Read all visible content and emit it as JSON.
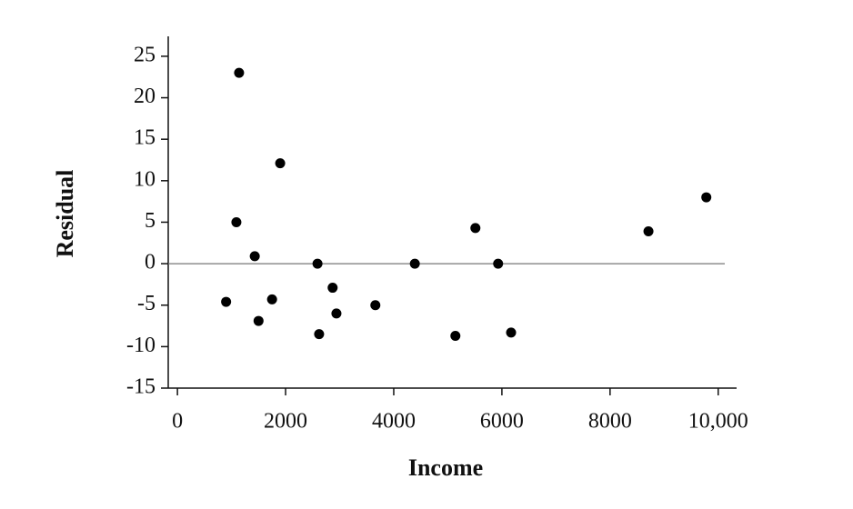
{
  "chart_data": {
    "type": "scatter",
    "x_label": "Income",
    "y_label": "Residual",
    "x": [
      900,
      1140,
      1090,
      1430,
      1500,
      1750,
      1900,
      2590,
      2620,
      2870,
      2940,
      3660,
      4390,
      5140,
      5510,
      5930,
      6170,
      8710,
      9780
    ],
    "values": [
      -4.6,
      23.0,
      5.0,
      0.9,
      -6.9,
      -4.3,
      12.1,
      0,
      -8.5,
      -2.9,
      -6.0,
      -5.0,
      0,
      -8.7,
      4.3,
      0,
      -8.3,
      3.9,
      8.0
    ],
    "color": "#000000",
    "xlim": [
      -170,
      10340
    ],
    "ylim": [
      -15,
      27.4
    ],
    "xticks": [
      0,
      2000,
      4000,
      6000,
      8000,
      {
        "value": 10000,
        "label": "10,000"
      }
    ],
    "yticks": [
      -15,
      -10,
      -5,
      0,
      5,
      10,
      15,
      20,
      25
    ],
    "hline": 0
  }
}
